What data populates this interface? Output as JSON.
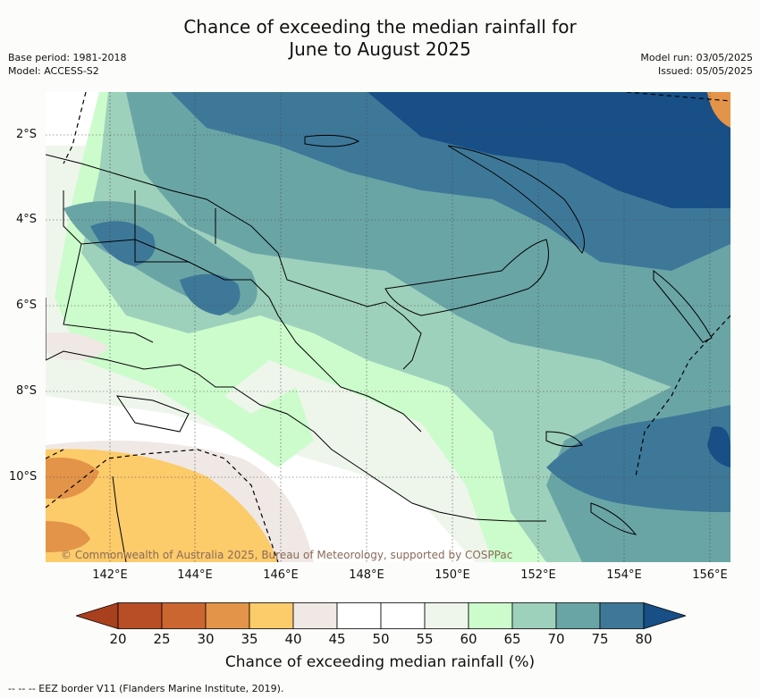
{
  "title_line1": "Chance of exceeding the median rainfall for",
  "title_line2": "June to August 2025",
  "meta_left": [
    "Base period: 1981-2018",
    "Model: ACCESS-S2"
  ],
  "meta_right": [
    "Model run: 03/05/2025",
    "Issued: 05/05/2025"
  ],
  "lat_labels": [
    "2°S",
    "4°S",
    "6°S",
    "8°S",
    "10°S"
  ],
  "lon_labels": [
    "142°E",
    "144°E",
    "146°E",
    "148°E",
    "150°E",
    "152°E",
    "154°E",
    "156°E"
  ],
  "copyright": "© Commonwealth of Australia 2025, Bureau of Meteorology, supported by COSPPac",
  "colorbar": {
    "ticks": [
      "20",
      "25",
      "30",
      "35",
      "40",
      "45",
      "50",
      "55",
      "60",
      "65",
      "70",
      "75",
      "80"
    ],
    "colors": [
      "#a8401e",
      "#b84e26",
      "#cc6630",
      "#e39448",
      "#fccb6a",
      "#efe8e4",
      "#ffffff",
      "#ffffff",
      "#eef6ec",
      "#ccfccc",
      "#9ed1bc",
      "#6aa5a6",
      "#3e7898",
      "#174f86"
    ],
    "label": "Chance of exceeding median rainfall (%)"
  },
  "legend_note": "--  --  -- EEZ border V11 (Flanders Marine Institute, 2019)."
}
